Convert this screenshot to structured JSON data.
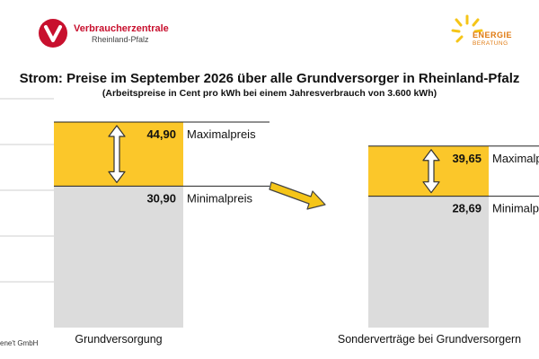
{
  "header": {
    "org_name": "Verbraucherzentrale",
    "org_region": "Rheinland-Pfalz",
    "partner_word1": "ENERGIE",
    "partner_word2": "BERATUNG"
  },
  "credit": "ene't GmbH",
  "colors": {
    "max_band": "#fbc72a",
    "min_band": "#dcdcdc",
    "accent_red": "#c8102e",
    "arrow_yellow": "#f5c518",
    "logo_orange": "#e07a10"
  },
  "chart_data": {
    "type": "bar",
    "title": "Strom: Preise im September 2026 über alle Grundversorger in Rheinland-Pfalz",
    "subtitle": "(Arbeitspreise in Cent pro kWh bei einem Jahresverbrauch von 3.600 kWh)",
    "unit": "Cent pro kWh",
    "ylim": [
      0,
      55
    ],
    "grid": true,
    "categories": [
      "Grundversorgung",
      "Sonderverträge bei Grundversorgern"
    ],
    "groups": [
      {
        "category": "Grundversorgung",
        "max": 44.9,
        "min": 30.9,
        "max_label": "44,90",
        "min_label": "30,90",
        "max_name": "Maximalpreis",
        "min_name": "Minimalpreis"
      },
      {
        "category": "Sonderverträge bei Grundversorgern",
        "max": 39.65,
        "min": 28.69,
        "max_label": "39,65",
        "min_label": "28,69",
        "max_name": "Maximalpreis",
        "min_name": "Minimalpreis"
      }
    ]
  }
}
